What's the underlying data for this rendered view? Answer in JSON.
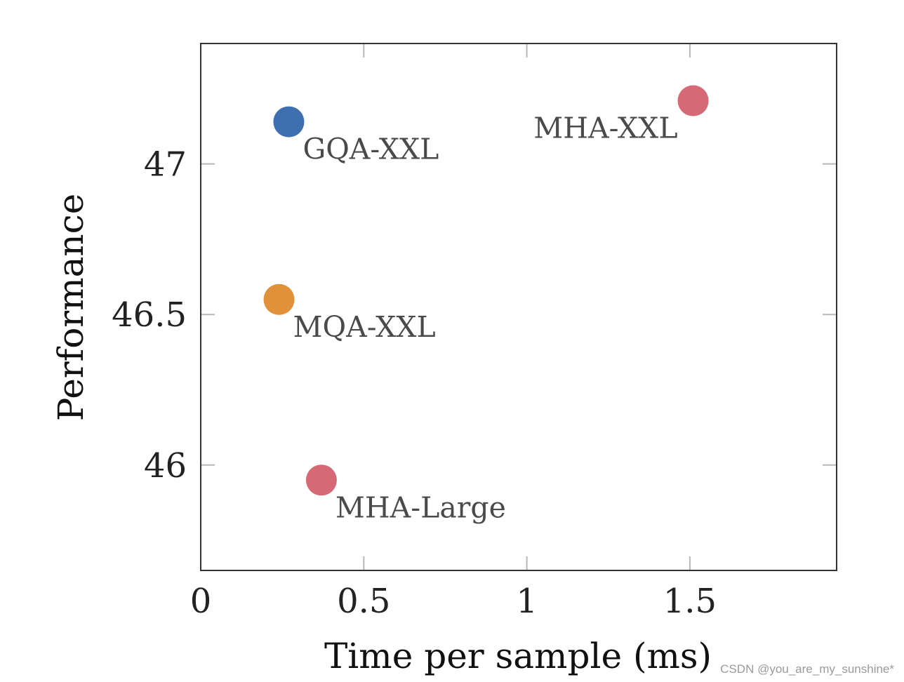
{
  "chart_data": {
    "type": "scatter",
    "title": "",
    "xlabel": "Time per sample (ms)",
    "ylabel": "Performance",
    "xlim": [
      0,
      1.95
    ],
    "ylim": [
      45.65,
      47.4
    ],
    "x_ticks": [
      0,
      0.5,
      1,
      1.5
    ],
    "x_tick_labels": [
      "0",
      "0.5",
      "1",
      "1.5"
    ],
    "y_ticks": [
      46,
      46.5,
      47
    ],
    "y_tick_labels": [
      "46",
      "46.5",
      "47"
    ],
    "grid": false,
    "points": [
      {
        "label": "GQA-XXL",
        "x": 0.27,
        "y": 47.14,
        "color": "#3e6fb0"
      },
      {
        "label": "MHA-XXL",
        "x": 1.51,
        "y": 47.21,
        "color": "#d56a76"
      },
      {
        "label": "MQA-XXL",
        "x": 0.24,
        "y": 46.55,
        "color": "#e0913a"
      },
      {
        "label": "MHA-Large",
        "x": 0.37,
        "y": 45.95,
        "color": "#d56a76"
      }
    ]
  },
  "watermark": "CSDN @you_are_my_sunshine*"
}
